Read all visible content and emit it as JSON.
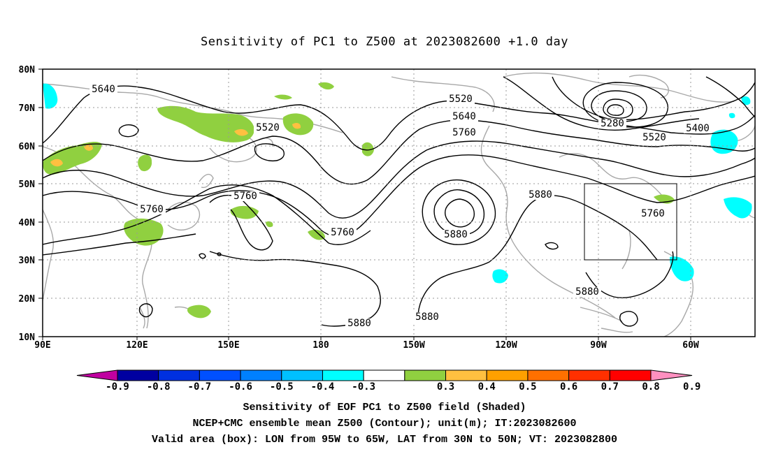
{
  "title": "Sensitivity of PC1 to Z500 at 2023082600 +1.0 day",
  "map": {
    "lat_labels": [
      "80N",
      "70N",
      "60N",
      "50N",
      "40N",
      "30N",
      "20N",
      "10N"
    ],
    "lon_labels": [
      "90E",
      "120E",
      "150E",
      "180",
      "150W",
      "120W",
      "90W",
      "60W"
    ],
    "contour_labels": [
      {
        "text": "5640"
      },
      {
        "text": "5520"
      },
      {
        "text": "5520"
      },
      {
        "text": "5640"
      },
      {
        "text": "5760"
      },
      {
        "text": "5280"
      },
      {
        "text": "5400"
      },
      {
        "text": "5520"
      },
      {
        "text": "5880"
      },
      {
        "text": "5760"
      },
      {
        "text": "5760"
      },
      {
        "text": "5880"
      },
      {
        "text": "5760"
      },
      {
        "text": "5760"
      },
      {
        "text": "5880"
      },
      {
        "text": "5880"
      },
      {
        "text": "5880"
      }
    ],
    "box": {
      "lon_min": "95W",
      "lon_max": "65W",
      "lat_min": "30N",
      "lat_max": "50N"
    }
  },
  "colorbar": {
    "labels": [
      "-0.9",
      "-0.8",
      "-0.7",
      "-0.6",
      "-0.5",
      "-0.4",
      "-0.3",
      "0.3",
      "0.4",
      "0.5",
      "0.6",
      "0.7",
      "0.8",
      "0.9"
    ],
    "colors": [
      "#c000a0",
      "#0000a0",
      "#0030e0",
      "#0050ff",
      "#0080ff",
      "#00c0ff",
      "#00ffff",
      "#ffffff",
      "#90d040",
      "#ffc040",
      "#ffa000",
      "#ff7000",
      "#ff3000",
      "#ff0000",
      "#ff90c0"
    ]
  },
  "caption": {
    "line1": "Sensitivity of EOF PC1 to Z500 field (Shaded)",
    "line2": "NCEP+CMC ensemble mean Z500 (Contour); unit(m); IT:2023082600",
    "line3": "Valid area (box): LON from 95W to 65W, LAT from 30N to 50N; VT: 2023082800"
  }
}
